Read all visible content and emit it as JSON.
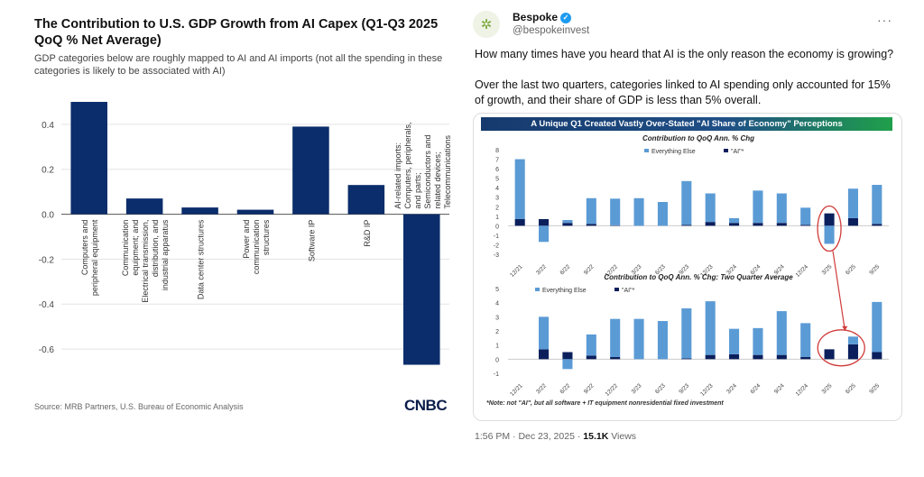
{
  "left_panel": {
    "title": "The Contribution to U.S. GDP Growth from AI Capex (Q1-Q3 2025 QoQ % Net Average)",
    "subtitle": "GDP categories below are roughly mapped to AI and AI imports (not all the spending in these categories is likely to be associated with AI)",
    "source": "Source: MRB Partners, U.S. Bureau of Economic Analysis",
    "logo": "CNBC"
  },
  "tweet": {
    "author_name": "Bespoke",
    "verified_icon": "verified-badge-icon",
    "handle": "@bespokeinvest",
    "more_icon": "···",
    "avatar_icon": "bespoke-logo-icon",
    "paragraphs": [
      "How many times have you heard that  AI is the only reason the economy is growing?",
      "Over the last two quarters, categories linked to AI spending only accounted for 15% of growth, and their share of GDP is less than 5% overall."
    ],
    "card_banner": "A Unique Q1 Created Vastly Over-Stated \"AI Share of Economy\" Perceptions",
    "card_note": "*Note: not \"AI\", but all software + IT equipment nonresidential fixed investment",
    "time": "1:56 PM",
    "date": "Dec 23, 2025",
    "views_count": "15.1K",
    "views_label": "Views"
  },
  "colors": {
    "cnbc_bar": "#0b2d6b",
    "everything_else": "#5b9bd5",
    "ai": "#0b1f5c",
    "highlight_circle": "#d03a3a"
  },
  "chart_data": [
    {
      "type": "bar",
      "title": "The Contribution to U.S. GDP Growth from AI Capex (Q1-Q3 2025 QoQ % Net Average)",
      "categories": [
        "Computers and peripheral equipment",
        "Communication equipment; and Electrical transmission, distribution, and industrial apparatus",
        "Data center structures",
        "Power and communication structures",
        "Software IP",
        "R&D IP",
        "AI-related imports: Computers, peripherals, and parts; Semiconductors and related devices; Telecommunications"
      ],
      "category_lines": [
        [
          "Computers and",
          "peripheral equipment"
        ],
        [
          "Communication",
          "equipment; and",
          "Electrical transmission,",
          "distribution, and",
          "industrial apparatus"
        ],
        [
          "Data center structures"
        ],
        [
          "Power and",
          "communication",
          "structures"
        ],
        [
          "Software IP"
        ],
        [
          "R&D IP"
        ],
        [
          "AI-related imports:",
          "Computers, peripherals,",
          "and parts;",
          "Semiconductors and",
          "related devices;",
          "Telecommunications"
        ]
      ],
      "values": [
        0.5,
        0.07,
        0.03,
        0.02,
        0.39,
        0.13,
        -0.67
      ],
      "yticks": [
        0.4,
        0.2,
        0.0,
        -0.2,
        -0.4,
        -0.6
      ],
      "ytick_labels": [
        "0.4",
        "0.2",
        "0.0",
        "-0.2",
        "-0.4",
        "-0.6"
      ],
      "ylim": [
        -0.7,
        0.52
      ],
      "xlabel": "",
      "ylabel": "",
      "grid": true
    },
    {
      "type": "bar",
      "stacked": true,
      "title": "Contribution to QoQ Ann. % Chg",
      "categories": [
        "12/21",
        "3/22",
        "6/22",
        "9/22",
        "12/22",
        "3/23",
        "6/23",
        "9/23",
        "12/23",
        "3/24",
        "6/24",
        "9/24",
        "12/24",
        "3/25",
        "6/25",
        "9/25"
      ],
      "series": [
        {
          "name": "Everything Else",
          "values": [
            6.3,
            -1.7,
            0.3,
            2.7,
            2.8,
            2.9,
            2.5,
            4.6,
            3.0,
            0.5,
            3.4,
            3.1,
            1.8,
            -1.9,
            3.1,
            4.1
          ]
        },
        {
          "name": "\"AI\"*",
          "values": [
            0.7,
            0.7,
            0.3,
            0.2,
            0.05,
            0.0,
            0.0,
            0.1,
            0.4,
            0.3,
            0.3,
            0.3,
            0.1,
            1.3,
            0.8,
            0.2
          ]
        }
      ],
      "yticks": [
        -3,
        -2,
        -1,
        0,
        1,
        2,
        3,
        4,
        5,
        6,
        7,
        8
      ],
      "ylim": [
        -3,
        8
      ],
      "legend": "top-center",
      "annotation": "red circle around 3/25 with arrow to lower chart",
      "grid": false
    },
    {
      "type": "bar",
      "stacked": true,
      "title": "Contribution to QoQ Ann. % Chg: Two Quarter Average",
      "categories": [
        "12/21",
        "3/22",
        "6/22",
        "9/22",
        "12/22",
        "3/23",
        "6/23",
        "9/23",
        "12/23",
        "3/24",
        "6/24",
        "9/24",
        "12/24",
        "3/25",
        "6/25",
        "9/25"
      ],
      "series": [
        {
          "name": "Everything Else",
          "values": [
            0.0,
            2.3,
            -0.7,
            1.5,
            2.7,
            2.85,
            2.7,
            3.55,
            3.8,
            1.8,
            1.9,
            3.1,
            2.4,
            0.0,
            0.55,
            3.55
          ]
        },
        {
          "name": "\"AI\"*",
          "values": [
            0.0,
            0.7,
            0.5,
            0.25,
            0.15,
            0.0,
            0.0,
            0.05,
            0.3,
            0.35,
            0.3,
            0.3,
            0.15,
            0.7,
            1.05,
            0.5
          ]
        }
      ],
      "yticks": [
        -1,
        0,
        1,
        2,
        3,
        4,
        5
      ],
      "ylim": [
        -1,
        5
      ],
      "legend": "top-left",
      "annotation": "red circle around 3/25 and 6/25",
      "grid": false
    }
  ]
}
